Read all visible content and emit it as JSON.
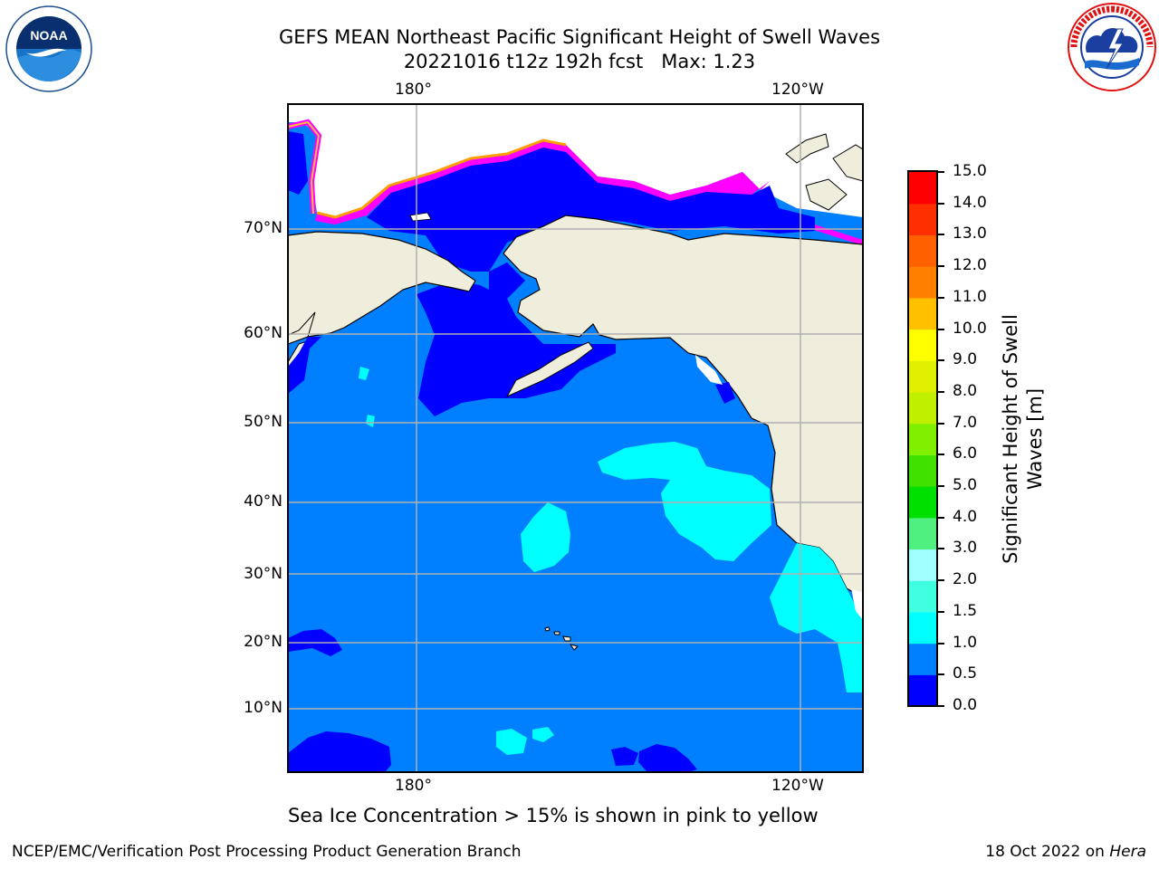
{
  "title": {
    "line1": "GEFS MEAN Northeast Pacific Significant Height of Swell Waves",
    "line2": "20221016 t12z 192h fcst   Max: 1.23"
  },
  "axes": {
    "lon_labels": [
      "180°",
      "120°W"
    ],
    "lat_labels": [
      "70°N",
      "60°N",
      "50°N",
      "40°N",
      "30°N",
      "20°N",
      "10°N"
    ]
  },
  "colorbar": {
    "label_line1": "Significant Height of Swell",
    "label_line2": "Waves [m]",
    "ticks": [
      "0.0",
      "0.5",
      "1.0",
      "1.5",
      "2.0",
      "3.0",
      "4.0",
      "5.0",
      "6.0",
      "7.0",
      "8.0",
      "9.0",
      "10.0",
      "11.0",
      "12.0",
      "13.0",
      "14.0",
      "15.0"
    ],
    "colors": [
      "#0000ff",
      "#0080ff",
      "#00ffff",
      "#40ffe0",
      "#a0ffff",
      "#50f080",
      "#00e000",
      "#40e000",
      "#80f000",
      "#c0f000",
      "#e0f000",
      "#ffff00",
      "#ffc000",
      "#ff8000",
      "#ff6000",
      "#ff3000",
      "#ff0000"
    ]
  },
  "map_colors": {
    "ocean": "#0080ff",
    "low_swell": "#0000ff",
    "mid_swell": "#00ffff",
    "land": "#efeddc",
    "ice_edge": "#ff00ff",
    "grid": "#b0b0b0"
  },
  "caption": "Sea Ice Concentration > 15% is shown in pink to yellow",
  "footer": {
    "left": "NCEP/EMC/Verification Post Processing Product Generation Branch",
    "right_date": "18 Oct 2022 on ",
    "right_host": "Hera"
  },
  "logos": {
    "left": {
      "name": "noaa-logo",
      "text": "NOAA",
      "ring_text": "NATIONAL OCEANIC AND ATMOSPHERIC ADMINISTRATION · U.S. DEPARTMENT OF COMMERCE"
    },
    "right": {
      "name": "nws-logo",
      "ring_text": "NATIONAL WEATHER SERVICE"
    }
  }
}
